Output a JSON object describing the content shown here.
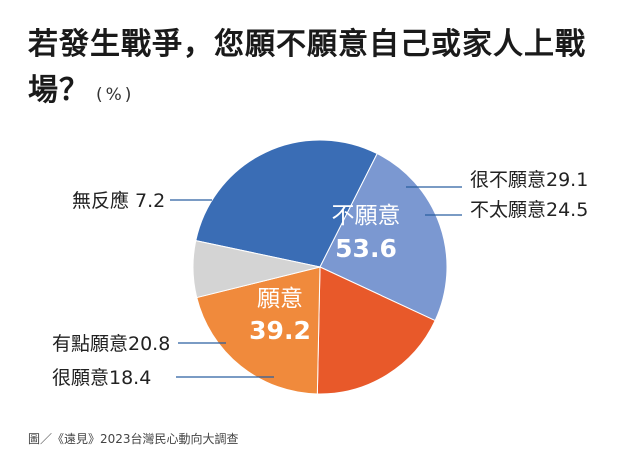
{
  "title": {
    "main": "若發生戰爭，您願不願意自己或家人上戰場？",
    "unit": "(%)"
  },
  "footer": {
    "source": "圖／《遠見》2023台灣民心動向大調查"
  },
  "colors": {
    "very_unwilling": "#3a6db5",
    "not_very_willing": "#7b98d1",
    "very_willing": "#e8592a",
    "somewhat_willing": "#f08a3c",
    "no_response": "#d4d4d4",
    "leader_line": "#2a5fa0",
    "inner_text": "#ffffff"
  },
  "chart_data": {
    "type": "pie",
    "title": "若發生戰爭，您願不願意自己或家人上戰場？",
    "unit": "(%)",
    "slices": [
      {
        "label": "很不願意",
        "value": 29.1,
        "display": "很不願意29.1",
        "color": "#3a6db5"
      },
      {
        "label": "不太願意",
        "value": 24.5,
        "display": "不太願意24.5",
        "color": "#7b98d1"
      },
      {
        "label": "很願意",
        "value": 18.4,
        "display": "很願意18.4",
        "color": "#e8592a"
      },
      {
        "label": "有點願意",
        "value": 20.8,
        "display": "有點願意20.8",
        "color": "#f08a3c"
      },
      {
        "label": "無反應",
        "value": 7.2,
        "display": "無反應 7.2",
        "color": "#d4d4d4"
      }
    ],
    "groups": [
      {
        "label": "不願意",
        "value": 53.6,
        "display": "53.6"
      },
      {
        "label": "願意",
        "value": 39.2,
        "display": "39.2"
      }
    ]
  }
}
